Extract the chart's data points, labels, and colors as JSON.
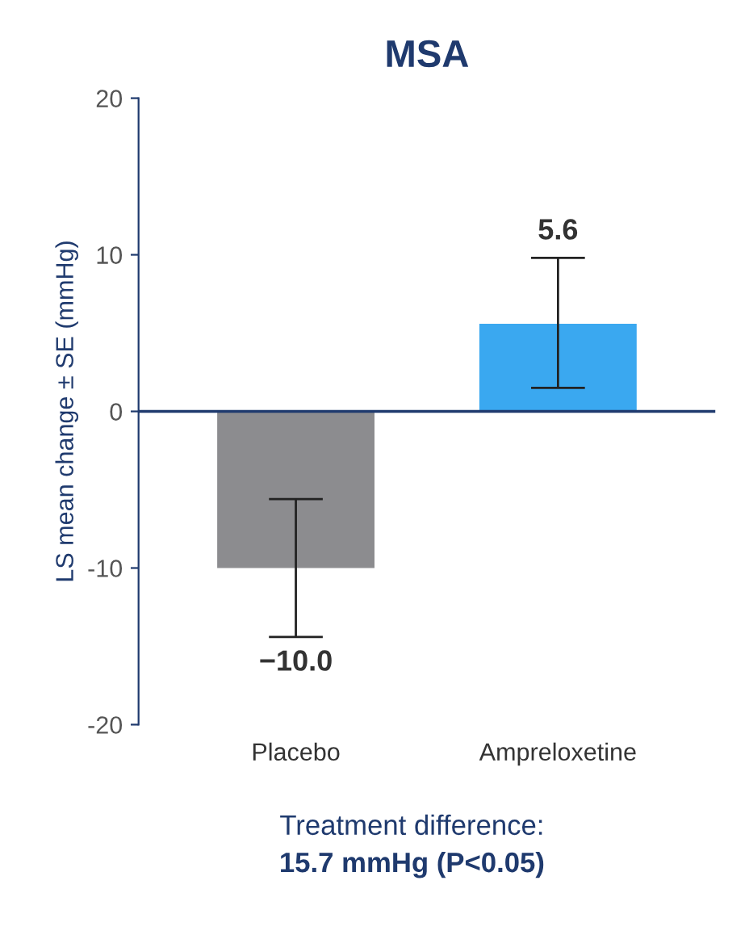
{
  "chart_data": {
    "type": "bar",
    "title": "MSA",
    "ylabel": "LS mean change ± SE (mmHg)",
    "categories": [
      "Placebo",
      "Ampreloxetine"
    ],
    "values": [
      -10.0,
      5.6
    ],
    "colors": [
      "#8c8c8f",
      "#3aa8f0"
    ],
    "errors": [
      [
        -14.4,
        -5.6
      ],
      [
        1.5,
        9.8
      ]
    ],
    "value_labels": [
      "−10.0",
      "5.6"
    ],
    "ref_lines": [
      {
        "axis": "y",
        "value": 0,
        "color": "#1f3a6e"
      }
    ],
    "ylim": [
      -20,
      20
    ],
    "yticks": [
      -20,
      -10,
      0,
      10,
      20
    ],
    "grid": false,
    "legend": false,
    "annotations": [
      "Treatment difference:",
      "15.7 mmHg (P<0.05)"
    ]
  }
}
